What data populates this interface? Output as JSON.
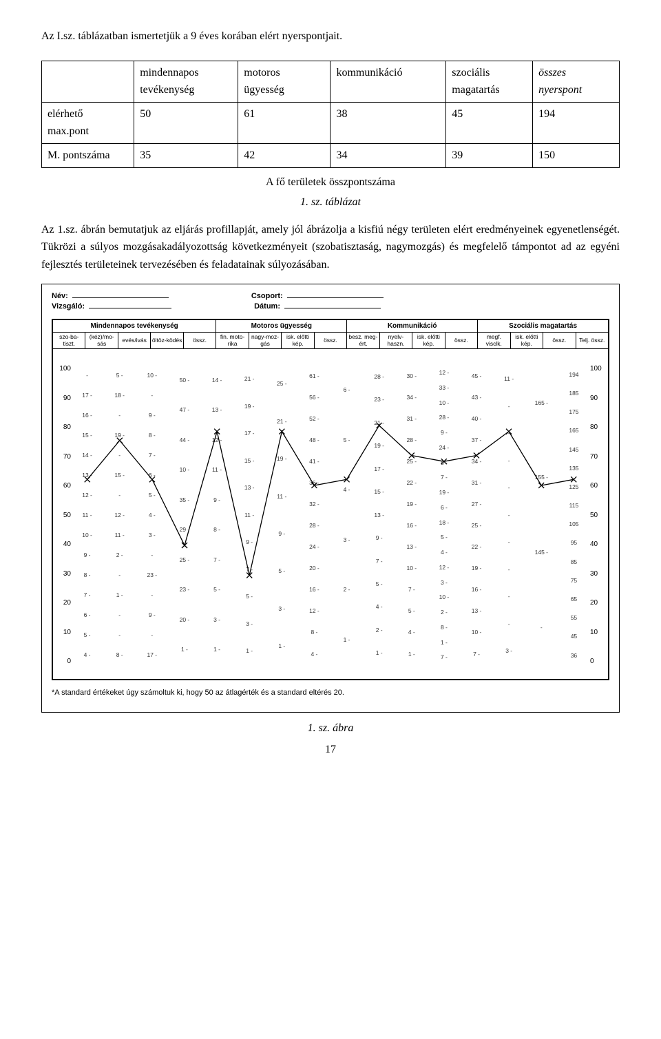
{
  "intro": {
    "line1": "Az I.sz. táblázatban ismertetjük a 9 éves korában elért nyerspontjait."
  },
  "table": {
    "headers": {
      "c1": "",
      "c2_top": "mindennapos",
      "c2_bot": "tevékenység",
      "c3_top": "motoros",
      "c3_bot": "ügyesség",
      "c4": "kommunikáció",
      "c5_top": "szociális",
      "c5_bot": "magatartás",
      "c6_top": "összes",
      "c6_bot": "nyerspont",
      "c6_top_style": "italic",
      "c6_bot_style": "italic"
    },
    "rows": [
      {
        "label_top": "elérhető",
        "label_bot": "max.pont",
        "v1": "50",
        "v2": "61",
        "v3": "38",
        "v4": "45",
        "v5": "194"
      },
      {
        "label_top": "M. pontszáma",
        "label_bot": "",
        "v1": "35",
        "v2": "42",
        "v3": "34",
        "v4": "39",
        "v5": "150"
      }
    ],
    "caption_line1": "A fő területek összpontszáma",
    "caption_line2": "1. sz. táblázat"
  },
  "para2": "Az 1.sz. ábrán bemutatjuk az eljárás   profillapját, amely jól ábrázolja a kisfiú négy területen elért eredményeinek  egyenetlenségét. Tükrözi a súlyos mozgásakadályozottság következményeit (szobatisztaság, nagymozgás) és megfelelő támpontot ad az egyéni fejlesztés területeinek tervezésében és feladatainak súlyozásában.",
  "figure": {
    "header": {
      "nev": "Név:",
      "csoport": "Csoport:",
      "vizsgalo": "Vizsgáló:",
      "datum": "Dátum:"
    },
    "groups": [
      {
        "title": "Mindennapos tevékenység",
        "subs": [
          "szo-ba-tiszt.",
          "(kéz)/mo-sás",
          "evés/ivás",
          "öltöz-ködés",
          "össz."
        ]
      },
      {
        "title": "Motoros ügyesség",
        "subs": [
          "fin. moto-rika",
          "nagy-moz-gás",
          "isk. előtti kép.",
          "össz."
        ]
      },
      {
        "title": "Kommunikáció",
        "subs": [
          "besz. meg-ért.",
          "nyelv-haszn.",
          "isk. előtti kép.",
          "össz."
        ]
      },
      {
        "title": "Szociális magatartás",
        "subs": [
          "megf. visclk.",
          "isk. előtti kép.",
          "össz.",
          "Telj. össz."
        ]
      }
    ],
    "y_ticks": [
      "100",
      "90",
      "80",
      "70",
      "60",
      "50",
      "40",
      "30",
      "20",
      "10",
      "0"
    ],
    "right_extra_labels": [
      "194 -",
      "185 -",
      "175 -",
      "165 -",
      "145 -",
      "135 -",
      "125 -",
      "115 -",
      "105 -",
      "95 -",
      "85 -",
      "75 -",
      "65 -",
      "55 -",
      "45 -",
      "36 -"
    ],
    "columns": [
      {
        "labels": [
          "-",
          "17 -",
          "16 -",
          "15 -",
          "14 -",
          "13 -",
          "12 -",
          "11 -",
          "10 -",
          "9 -",
          "8 -",
          "7 -",
          "6 -",
          "5 -",
          "4 -"
        ],
        "mark": 62
      },
      {
        "labels": [
          "5 -",
          "18 -",
          "-",
          "19 -",
          "-",
          "15 -",
          "-",
          "12 -",
          "11 -",
          "2 -",
          "-",
          "1 -",
          "-",
          "-",
          "8 -"
        ],
        "mark": 75
      },
      {
        "labels": [
          "10 -",
          "-",
          "9 -",
          "8 -",
          "7 -",
          "6 -",
          "5 -",
          "4 -",
          "3 -",
          "-",
          "23 -",
          "-",
          "9 -",
          "-",
          "17 -"
        ],
        "mark": 62
      },
      {
        "labels": [
          "50 -",
          "47 -",
          "44 -",
          "10 -",
          "35 -",
          "29 -",
          "25 -",
          "23 -",
          "20 -",
          "1 -"
        ],
        "mark": 40
      },
      {
        "labels": [
          "14 -",
          "13 -",
          "12 -",
          "11 -",
          "9 -",
          "8 -",
          "7 -",
          "5 -",
          "3 -",
          "1 -"
        ],
        "mark": 78
      },
      {
        "labels": [
          "21 -",
          "19 -",
          "17 -",
          "15 -",
          "13 -",
          "11 -",
          "9 -",
          "7 -",
          "5 -",
          "3 -",
          "1 -"
        ],
        "mark": 30
      },
      {
        "labels": [
          "25 -",
          "21 -",
          "19 -",
          "11 -",
          "9 -",
          "5 -",
          "3 -",
          "1 -"
        ],
        "mark": 78
      },
      {
        "labels": [
          "61 -",
          "56 -",
          "52 -",
          "48 -",
          "41 -",
          "36 -",
          "32 -",
          "28 -",
          "24 -",
          "20 -",
          "16 -",
          "12 -",
          "8 -",
          "4 -"
        ],
        "mark": 60
      },
      {
        "labels": [
          "6 -",
          "5 -",
          "4 -",
          "3 -",
          "2 -",
          "1 -"
        ],
        "mark": 62
      },
      {
        "labels": [
          "28 -",
          "23 -",
          "21 -",
          "19 -",
          "17 -",
          "15 -",
          "13 -",
          "9 -",
          "7 -",
          "5 -",
          "4 -",
          "2 -",
          "1 -"
        ],
        "mark": 80
      },
      {
        "labels": [
          "30 -",
          "34 -",
          "31 -",
          "28 -",
          "25 -",
          "22 -",
          "19 -",
          "16 -",
          "13 -",
          "10 -",
          "7 -",
          "5 -",
          "4 -",
          "1 -"
        ],
        "mark": 70
      },
      {
        "labels": [
          "12 -",
          "33 -",
          "10 -",
          "28 -",
          "9 -",
          "24 -",
          "8 -",
          "7 -",
          "19 -",
          "6 -",
          "18 -",
          "5 -",
          "4 -",
          "12 -",
          "3 -",
          "10 -",
          "2 -",
          "8 -",
          "1 -",
          "7 -"
        ],
        "mark": 68
      },
      {
        "labels": [
          "45 -",
          "43 -",
          "40 -",
          "37 -",
          "34 -",
          "31 -",
          "27 -",
          "25 -",
          "22 -",
          "19 -",
          "16 -",
          "13 -",
          "10 -",
          "7 -"
        ],
        "mark": 70
      },
      {
        "labels": [
          "11 -",
          "-",
          "-",
          "-",
          "-",
          "-",
          "-",
          "-",
          "-",
          "-",
          "3 -"
        ],
        "mark": 78
      },
      {
        "labels": [
          "165 -",
          "155 -",
          "145 -",
          "-"
        ],
        "mark": 60
      },
      {
        "labels": [
          "194",
          "185",
          "175",
          "165",
          "145",
          "135",
          "125",
          "115",
          "105",
          "95",
          "85",
          "75",
          "65",
          "55",
          "45",
          "36"
        ],
        "mark": 62
      }
    ],
    "footnote": "*A standard értékeket úgy számoltuk ki, hogy 50 az átlagérték és a standard eltérés 20.",
    "caption": "1. sz. ábra",
    "page": "17"
  }
}
